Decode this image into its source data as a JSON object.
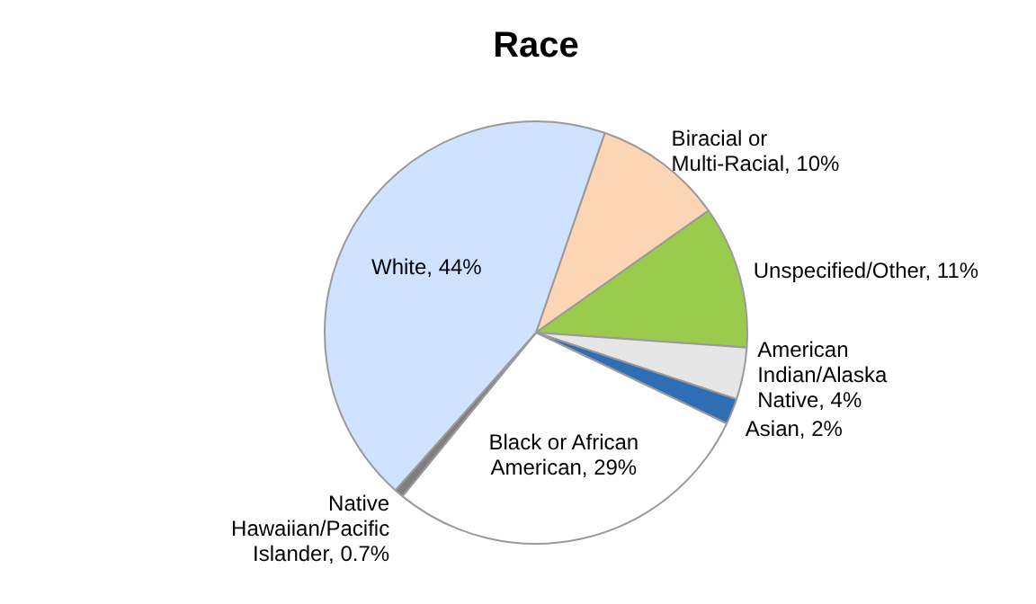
{
  "chart_data": {
    "type": "pie",
    "title": "Race",
    "categories": [
      "Biracial or Multi-Racial",
      "Unspecified/Other",
      "American Indian/Alaska Native",
      "Asian",
      "Black or African American",
      "Native Hawaiian/Pacific Islander",
      "White"
    ],
    "values": [
      10,
      11,
      4,
      2,
      29,
      0.7,
      44
    ],
    "value_labels": [
      "10%",
      "11%",
      "4%",
      "2%",
      "29%",
      "0.7%",
      "44%"
    ],
    "colors": [
      "#fcd5b4",
      "#9bcb4c",
      "#e6e6e6",
      "#2f6db5",
      "#ffffff",
      "#7f7f7f",
      "#cfe2ff"
    ],
    "legend": false
  }
}
